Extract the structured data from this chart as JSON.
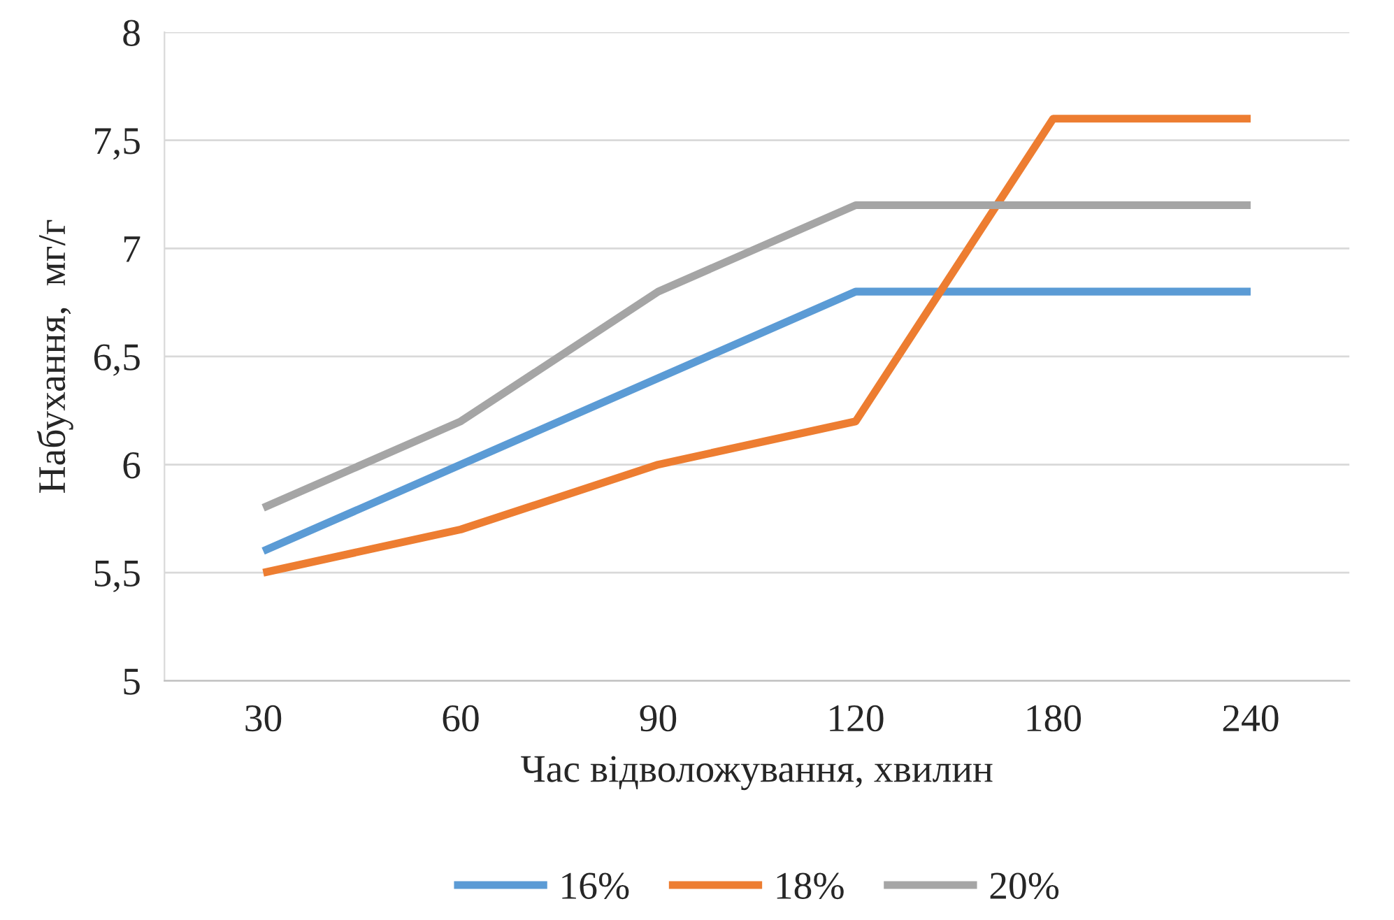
{
  "chart_data": {
    "type": "line",
    "xlabel": "Час відволожування, хвилин",
    "ylabel": "Набухання,  мг/г",
    "categories": [
      "30",
      "60",
      "90",
      "120",
      "180",
      "240"
    ],
    "series": [
      {
        "name": "16%",
        "color": "#5b9bd5",
        "values": [
          5.6,
          6.0,
          6.4,
          6.8,
          6.8,
          6.8
        ]
      },
      {
        "name": "18%",
        "color": "#ed7d31",
        "values": [
          5.5,
          5.7,
          6.0,
          6.2,
          7.6,
          7.6
        ]
      },
      {
        "name": "20%",
        "color": "#a5a5a5",
        "values": [
          5.8,
          6.2,
          6.8,
          7.2,
          7.2,
          7.2
        ]
      }
    ],
    "ylim": [
      5,
      8
    ],
    "yticks": [
      5,
      {
        "value": 5.5,
        "label": "5,5"
      },
      6,
      {
        "value": 6.5,
        "label": "6,5"
      },
      7,
      {
        "value": 7.5,
        "label": "7,5"
      },
      8
    ],
    "grid": "y",
    "legend": "bottom",
    "marker": "none",
    "line_style": "solid"
  }
}
